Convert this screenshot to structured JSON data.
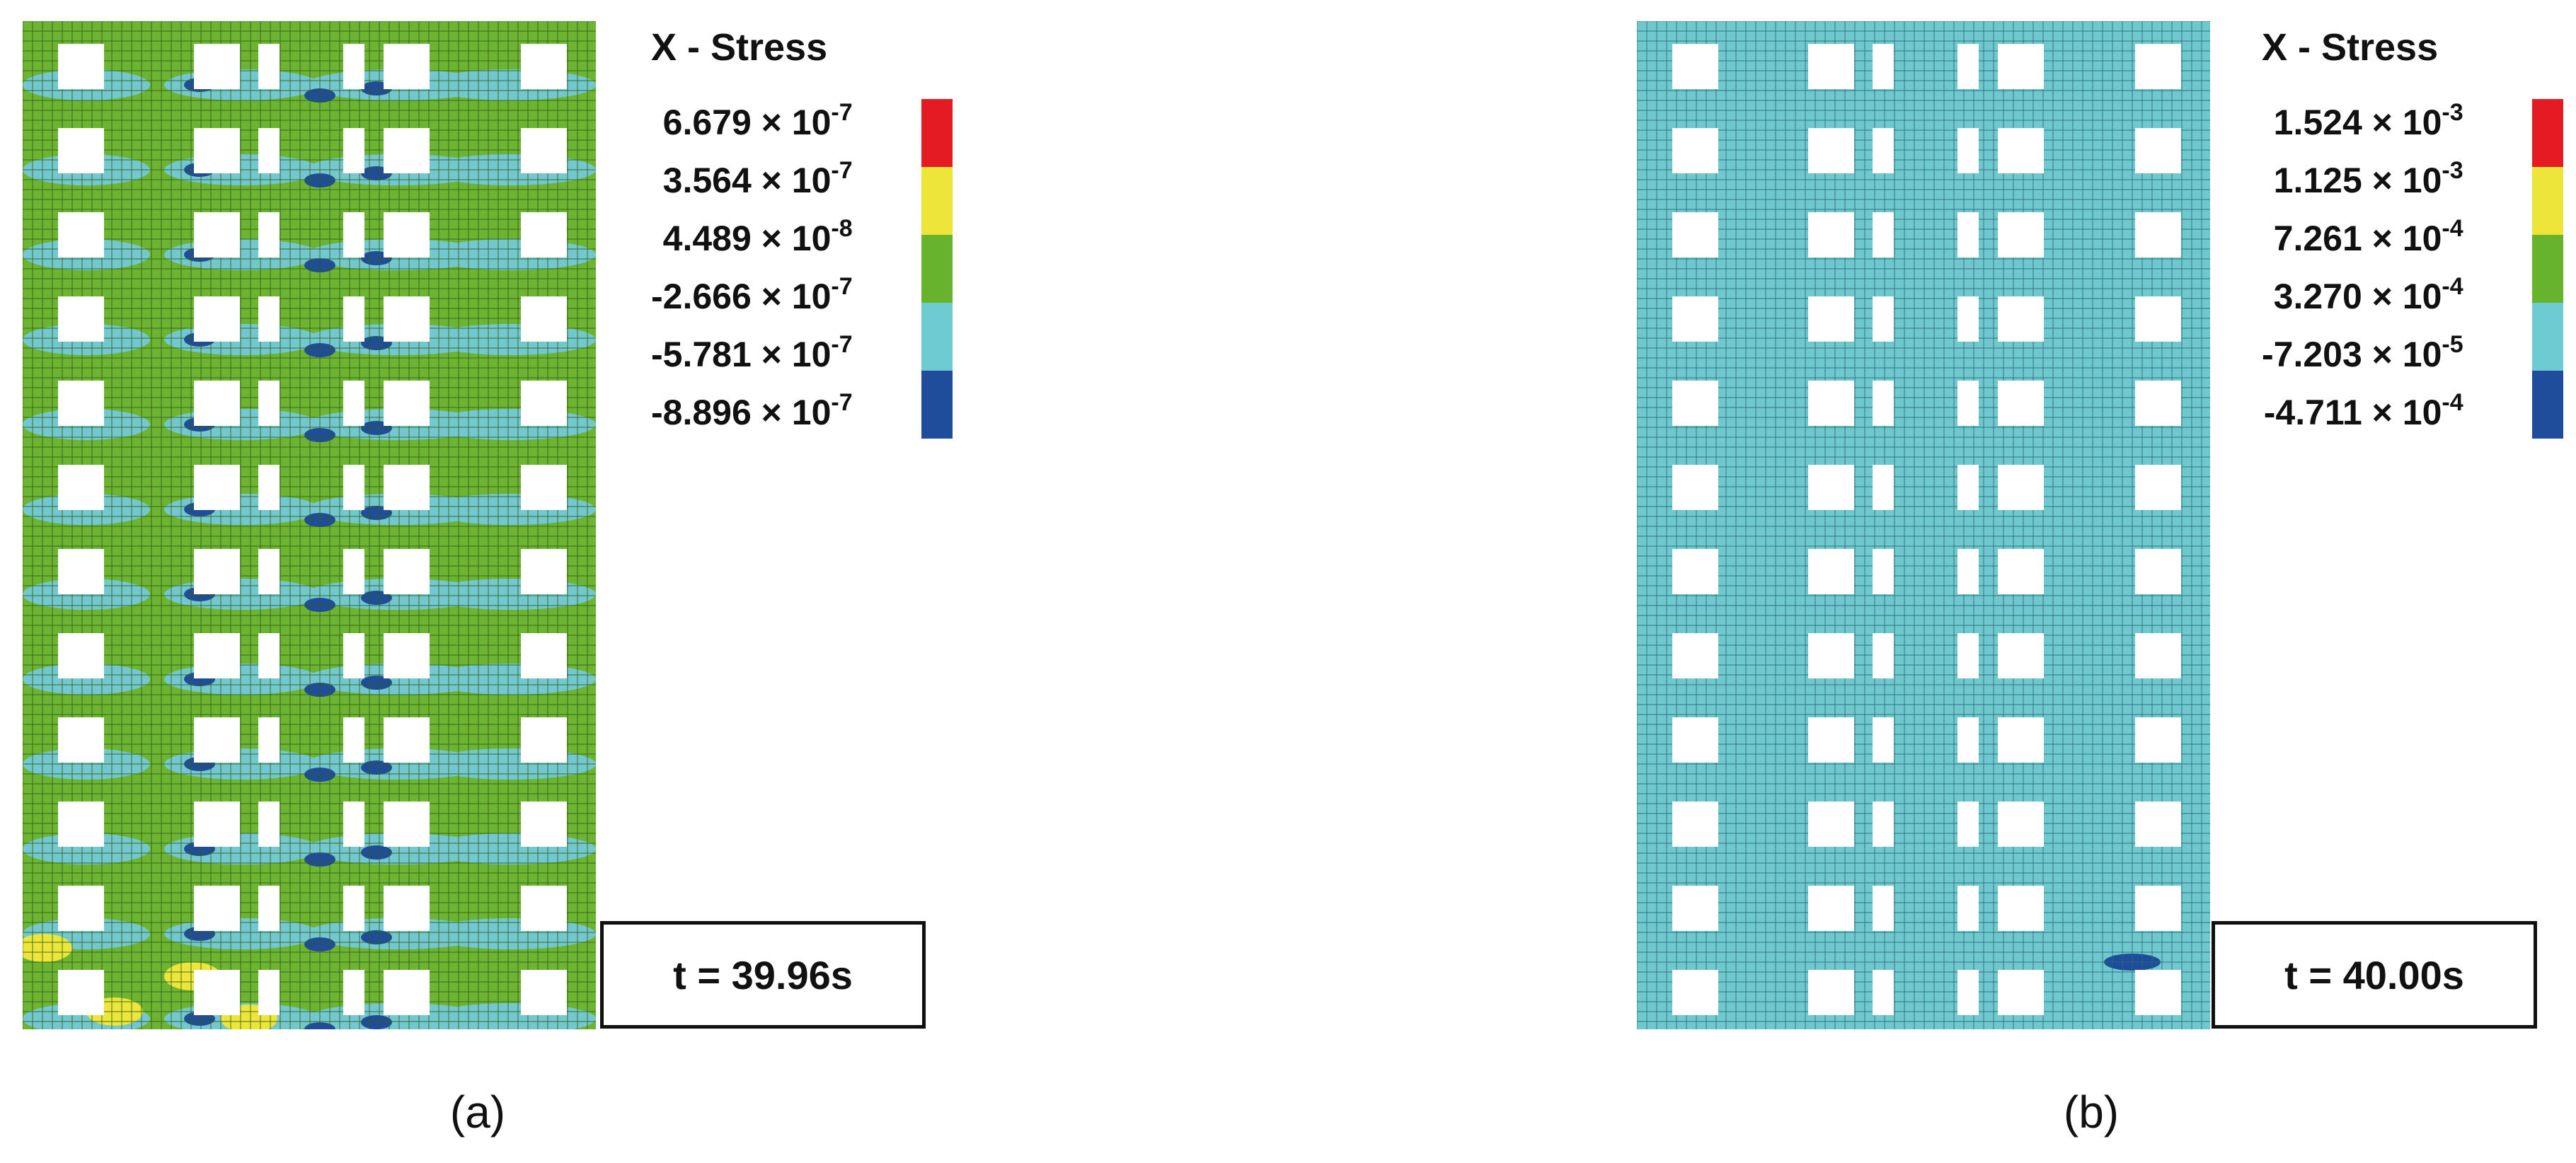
{
  "panels": [
    {
      "legend_title": "X - Stress",
      "values": [
        {
          "mantissa": "6.679",
          "exp": "-7"
        },
        {
          "mantissa": "3.564",
          "exp": "-7"
        },
        {
          "mantissa": "4.489",
          "exp": "-8"
        },
        {
          "mantissa": "-2.666",
          "exp": "-7"
        },
        {
          "mantissa": "-5.781",
          "exp": "-7"
        },
        {
          "mantissa": "-8.896",
          "exp": "-7"
        }
      ],
      "times_base": "× 10",
      "colors": [
        "#e41b23",
        "#ede53a",
        "#68b32d",
        "#6ecbd1",
        "#1f4d9b"
      ],
      "mesh_color": "#6db432",
      "time_label": "t = 39.96s",
      "caption": "(a)"
    },
    {
      "legend_title": "X - Stress",
      "values": [
        {
          "mantissa": "1.524",
          "exp": "-3"
        },
        {
          "mantissa": "1.125",
          "exp": "-3"
        },
        {
          "mantissa": "7.261",
          "exp": "-4"
        },
        {
          "mantissa": "3.270",
          "exp": "-4"
        },
        {
          "mantissa": "-7.203",
          "exp": "-5"
        },
        {
          "mantissa": "-4.711",
          "exp": "-4"
        }
      ],
      "times_base": "× 10",
      "colors": [
        "#e41b23",
        "#ede53a",
        "#68b32d",
        "#6ecbd1",
        "#1f4d9b"
      ],
      "mesh_color": "#70c8cf",
      "time_label": "t = 40.00s",
      "caption": "(b)"
    }
  ]
}
